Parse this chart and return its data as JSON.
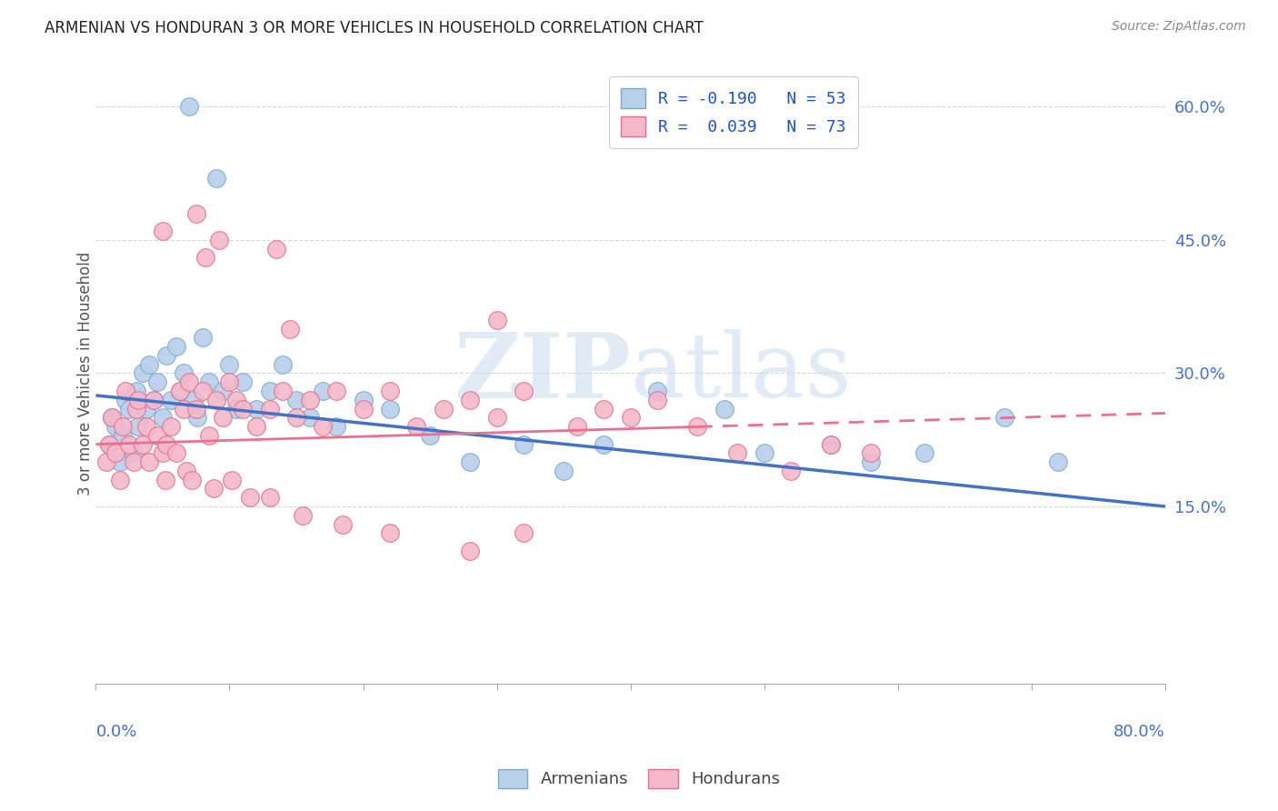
{
  "title": "ARMENIAN VS HONDURAN 3 OR MORE VEHICLES IN HOUSEHOLD CORRELATION CHART",
  "source": "Source: ZipAtlas.com",
  "ylabel": "3 or more Vehicles in Household",
  "xlim": [
    0.0,
    80.0
  ],
  "ylim": [
    -5.0,
    65.0
  ],
  "ytick_vals": [
    15.0,
    30.0,
    45.0,
    60.0
  ],
  "ytick_labels": [
    "15.0%",
    "30.0%",
    "45.0%",
    "60.0%"
  ],
  "watermark_zip": "ZIP",
  "watermark_atlas": "atlas",
  "armenian_fill": "#b8d0ea",
  "armenian_edge": "#7aaad0",
  "honduran_fill": "#f5b8cb",
  "honduran_edge": "#e07090",
  "line_armenian_color": "#4472c4",
  "line_honduran_color": "#e87090",
  "axis_label_color": "#4472c4",
  "grid_color": "#cccccc",
  "title_color": "#222222",
  "source_color": "#888888",
  "ylabel_color": "#555555",
  "background": "#ffffff",
  "arm_line_x0": 0,
  "arm_line_y0": 27.5,
  "arm_line_x1": 80,
  "arm_line_y1": 15.0,
  "hon_line_x0": 0,
  "hon_line_y0": 22.0,
  "hon_line_x1": 80,
  "hon_line_y1": 25.5,
  "hon_solid_end_x": 45,
  "armenian_pts_x": [
    1.0,
    1.2,
    1.5,
    1.8,
    2.0,
    2.2,
    2.5,
    2.8,
    3.0,
    3.2,
    3.5,
    3.8,
    4.0,
    4.3,
    4.6,
    5.0,
    5.3,
    5.6,
    6.0,
    6.3,
    6.6,
    7.0,
    7.3,
    7.6,
    8.0,
    8.5,
    9.0,
    9.5,
    10.0,
    10.5,
    11.0,
    12.0,
    13.0,
    14.0,
    15.0,
    16.0,
    17.0,
    18.0,
    20.0,
    22.0,
    25.0,
    28.0,
    32.0,
    35.0,
    38.0,
    42.0,
    47.0,
    50.0,
    55.0,
    58.0,
    62.0,
    68.0,
    72.0
  ],
  "armenian_pts_y": [
    22.0,
    25.0,
    24.0,
    20.0,
    23.0,
    27.0,
    26.0,
    21.0,
    28.0,
    24.0,
    30.0,
    26.0,
    31.0,
    27.0,
    29.0,
    25.0,
    32.0,
    27.0,
    33.0,
    28.0,
    30.0,
    60.0,
    27.0,
    25.0,
    34.0,
    29.0,
    52.0,
    28.0,
    31.0,
    26.0,
    29.0,
    26.0,
    28.0,
    31.0,
    27.0,
    25.0,
    28.0,
    24.0,
    27.0,
    26.0,
    23.0,
    20.0,
    22.0,
    19.0,
    22.0,
    28.0,
    26.0,
    21.0,
    22.0,
    20.0,
    21.0,
    25.0,
    20.0
  ],
  "honduran_pts_x": [
    0.8,
    1.0,
    1.2,
    1.5,
    1.8,
    2.0,
    2.2,
    2.5,
    2.8,
    3.0,
    3.2,
    3.5,
    3.8,
    4.0,
    4.3,
    4.6,
    5.0,
    5.3,
    5.6,
    6.0,
    6.3,
    6.6,
    7.0,
    7.5,
    8.0,
    8.5,
    9.0,
    9.5,
    10.0,
    10.5,
    11.0,
    12.0,
    13.0,
    14.0,
    15.0,
    16.0,
    17.0,
    18.0,
    20.0,
    22.0,
    24.0,
    26.0,
    28.0,
    30.0,
    32.0,
    36.0,
    38.0,
    40.0,
    42.0,
    45.0,
    48.0,
    52.0,
    55.0,
    58.0,
    5.0,
    7.5,
    8.2,
    9.2,
    13.5,
    14.5,
    30.0,
    28.0,
    5.2,
    6.8,
    7.2,
    8.8,
    10.2,
    11.5,
    13.0,
    15.5,
    18.5,
    22.0,
    32.0
  ],
  "honduran_pts_y": [
    20.0,
    22.0,
    25.0,
    21.0,
    18.0,
    24.0,
    28.0,
    22.0,
    20.0,
    26.0,
    27.0,
    22.0,
    24.0,
    20.0,
    27.0,
    23.0,
    21.0,
    22.0,
    24.0,
    21.0,
    28.0,
    26.0,
    29.0,
    26.0,
    28.0,
    23.0,
    27.0,
    25.0,
    29.0,
    27.0,
    26.0,
    24.0,
    26.0,
    28.0,
    25.0,
    27.0,
    24.0,
    28.0,
    26.0,
    28.0,
    24.0,
    26.0,
    27.0,
    25.0,
    28.0,
    24.0,
    26.0,
    25.0,
    27.0,
    24.0,
    21.0,
    19.0,
    22.0,
    21.0,
    46.0,
    48.0,
    43.0,
    45.0,
    44.0,
    35.0,
    36.0,
    10.0,
    18.0,
    19.0,
    18.0,
    17.0,
    18.0,
    16.0,
    16.0,
    14.0,
    13.0,
    12.0,
    12.0
  ]
}
